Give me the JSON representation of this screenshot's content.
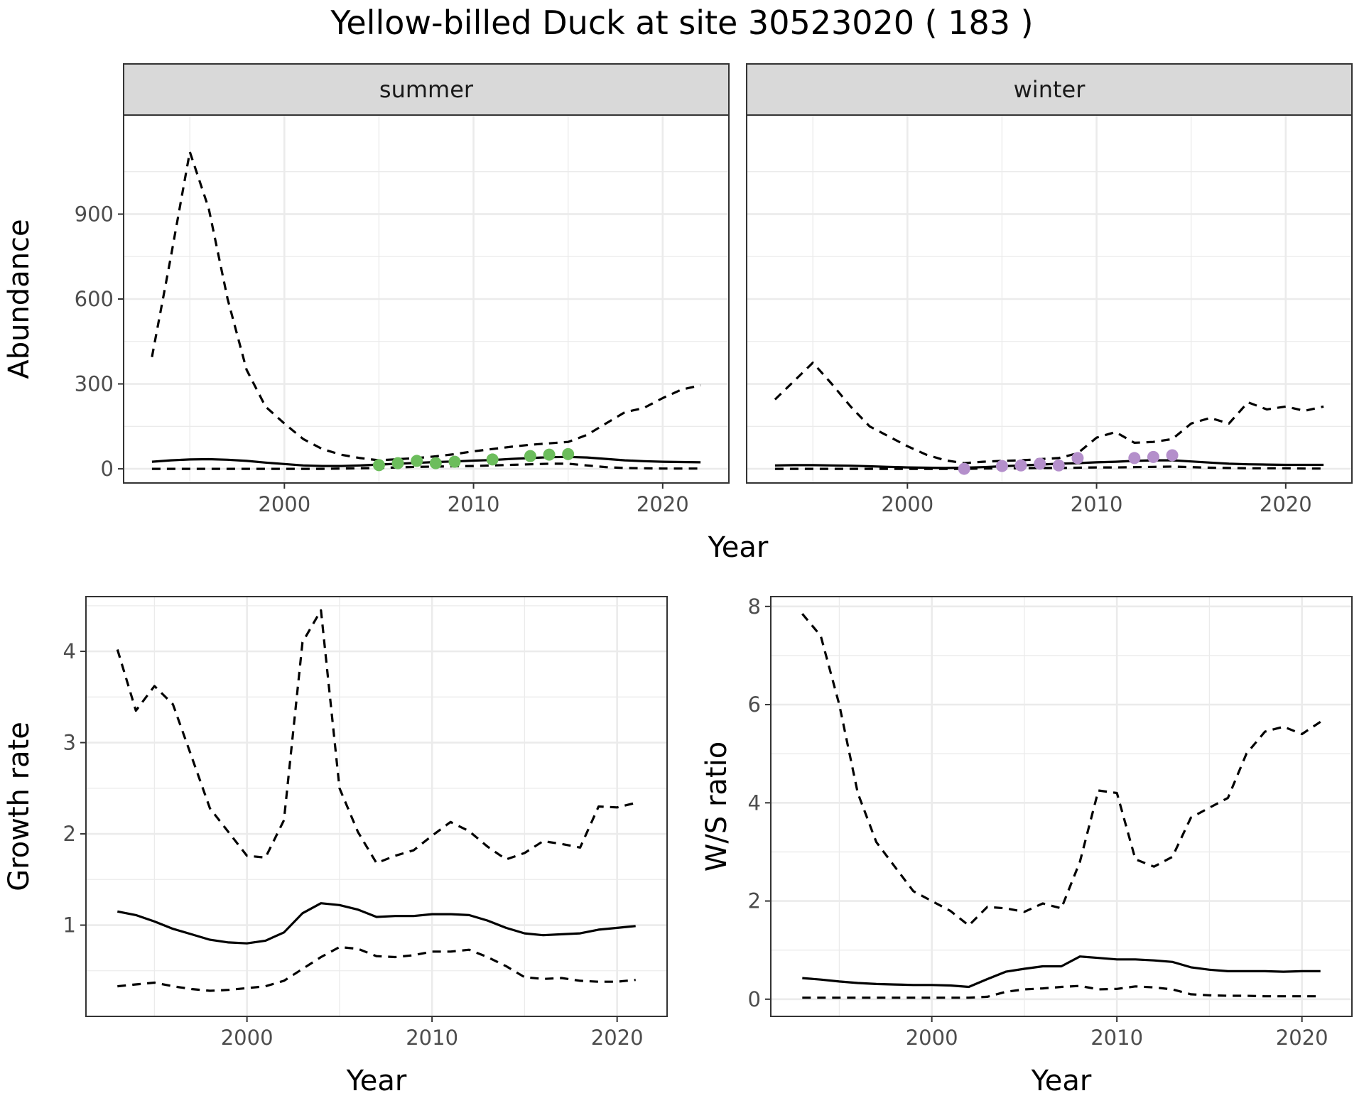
{
  "title": "Yellow-billed Duck at site 30523020 ( 183 )",
  "colors": {
    "summer_points": "#6cbd5c",
    "winter_points": "#b48fcb",
    "lines": "#000000",
    "strip_fill": "#d9d9d9",
    "grid": "#ebebeb"
  },
  "chart_data": [
    {
      "type": "line",
      "panel": "summer",
      "strip": "summer",
      "xlabel": "Year",
      "ylabel": "Abundance",
      "xlim": [
        1991.5,
        2023.5
      ],
      "ylim": [
        -50,
        1250
      ],
      "xticks": [
        2000,
        2010,
        2020
      ],
      "yticks": [
        0,
        300,
        600,
        900
      ],
      "grid": true,
      "series": [
        {
          "style": "solid",
          "x": [
            1993,
            1994,
            1995,
            1996,
            1997,
            1998,
            1999,
            2000,
            2001,
            2002,
            2003,
            2004,
            2005,
            2006,
            2007,
            2008,
            2009,
            2010,
            2011,
            2012,
            2013,
            2014,
            2015,
            2016,
            2017,
            2018,
            2019,
            2020,
            2021,
            2022
          ],
          "y": [
            25,
            30,
            33,
            34,
            32,
            28,
            22,
            17,
            12,
            10,
            10,
            12,
            15,
            18,
            21,
            24,
            26,
            29,
            31,
            35,
            38,
            41,
            42,
            40,
            35,
            30,
            27,
            25,
            24,
            23
          ]
        },
        {
          "style": "dashed",
          "x": [
            1993,
            1994,
            1995,
            1996,
            1997,
            1998,
            1999,
            2000,
            2001,
            2002,
            2003,
            2004,
            2005,
            2006,
            2007,
            2008,
            2009,
            2010,
            2011,
            2012,
            2013,
            2014,
            2015,
            2016,
            2017,
            2018,
            2019,
            2020,
            2021,
            2022
          ],
          "y": [
            395,
            750,
            1120,
            920,
            600,
            350,
            220,
            160,
            105,
            70,
            50,
            38,
            30,
            34,
            38,
            44,
            52,
            62,
            70,
            78,
            85,
            90,
            95,
            120,
            160,
            200,
            215,
            250,
            280,
            295
          ]
        },
        {
          "style": "dashed",
          "x": [
            1993,
            1994,
            1995,
            1996,
            1997,
            1998,
            1999,
            2000,
            2001,
            2002,
            2003,
            2004,
            2005,
            2006,
            2007,
            2008,
            2009,
            2010,
            2011,
            2012,
            2013,
            2014,
            2015,
            2016,
            2017,
            2018,
            2019,
            2020,
            2021,
            2022
          ],
          "y": [
            0,
            0,
            0,
            0,
            0,
            0,
            0,
            0,
            0,
            0,
            1,
            2,
            3,
            5,
            7,
            8,
            9,
            10,
            12,
            14,
            16,
            18,
            18,
            12,
            6,
            3,
            2,
            1,
            1,
            1
          ]
        }
      ],
      "points": {
        "x": [
          2005,
          2006,
          2007,
          2008,
          2009,
          2011,
          2013,
          2014,
          2015
        ],
        "y": [
          13,
          20,
          28,
          20,
          25,
          33,
          45,
          50,
          52
        ]
      }
    },
    {
      "type": "line",
      "panel": "winter",
      "strip": "winter",
      "xlabel": "Year",
      "xlim": [
        1991.5,
        2023.5
      ],
      "ylim": [
        -50,
        1250
      ],
      "xticks": [
        2000,
        2010,
        2020
      ],
      "yticks": [
        0,
        300,
        600,
        900
      ],
      "grid": true,
      "series": [
        {
          "style": "solid",
          "x": [
            1993,
            1994,
            1995,
            1996,
            1997,
            1998,
            1999,
            2000,
            2001,
            2002,
            2003,
            2004,
            2005,
            2006,
            2007,
            2008,
            2009,
            2010,
            2011,
            2012,
            2013,
            2014,
            2015,
            2016,
            2017,
            2018,
            2019,
            2020,
            2021,
            2022
          ],
          "y": [
            12,
            13,
            13,
            12,
            11,
            9,
            7,
            5,
            4,
            3,
            4,
            6,
            9,
            12,
            15,
            18,
            20,
            23,
            25,
            28,
            30,
            30,
            26,
            22,
            18,
            16,
            15,
            14,
            14,
            14
          ]
        },
        {
          "style": "dashed",
          "x": [
            1993,
            1994,
            1995,
            1996,
            1997,
            1998,
            1999,
            2000,
            2001,
            2002,
            2003,
            2004,
            2005,
            2006,
            2007,
            2008,
            2009,
            2010,
            2011,
            2012,
            2013,
            2014,
            2015,
            2016,
            2017,
            2018,
            2019,
            2020,
            2021,
            2022
          ],
          "y": [
            245,
            310,
            375,
            300,
            220,
            150,
            115,
            80,
            50,
            30,
            20,
            25,
            28,
            30,
            34,
            38,
            55,
            110,
            130,
            92,
            95,
            105,
            160,
            180,
            160,
            235,
            210,
            220,
            205,
            220
          ]
        },
        {
          "style": "dashed",
          "x": [
            1993,
            1994,
            1995,
            1996,
            1997,
            1998,
            1999,
            2000,
            2001,
            2002,
            2003,
            2004,
            2005,
            2006,
            2007,
            2008,
            2009,
            2010,
            2011,
            2012,
            2013,
            2014,
            2015,
            2016,
            2017,
            2018,
            2019,
            2020,
            2021,
            2022
          ],
          "y": [
            0,
            0,
            0,
            0,
            0,
            0,
            0,
            0,
            0,
            0,
            0,
            1,
            2,
            2,
            3,
            3,
            4,
            5,
            5,
            6,
            7,
            8,
            6,
            4,
            3,
            2,
            2,
            2,
            1,
            1
          ]
        }
      ],
      "points": {
        "x": [
          2003,
          2005,
          2006,
          2007,
          2008,
          2009,
          2012,
          2013,
          2014
        ],
        "y": [
          0,
          10,
          12,
          18,
          12,
          38,
          38,
          42,
          48
        ]
      }
    },
    {
      "type": "line",
      "panel": "growth",
      "xlabel": "Year",
      "ylabel": "Growth rate",
      "xlim": [
        1991.3,
        2022.7
      ],
      "ylim": [
        0.0,
        4.6
      ],
      "xticks": [
        2000,
        2010,
        2020
      ],
      "yticks": [
        1,
        2,
        3,
        4
      ],
      "grid": true,
      "series": [
        {
          "style": "solid",
          "x": [
            1993,
            1994,
            1995,
            1996,
            1997,
            1998,
            1999,
            2000,
            2001,
            2002,
            2003,
            2004,
            2005,
            2006,
            2007,
            2008,
            2009,
            2010,
            2011,
            2012,
            2013,
            2014,
            2015,
            2016,
            2017,
            2018,
            2019,
            2020,
            2021
          ],
          "y": [
            1.15,
            1.11,
            1.04,
            0.96,
            0.9,
            0.84,
            0.81,
            0.8,
            0.83,
            0.92,
            1.13,
            1.24,
            1.22,
            1.17,
            1.09,
            1.1,
            1.1,
            1.12,
            1.12,
            1.11,
            1.05,
            0.97,
            0.91,
            0.89,
            0.9,
            0.91,
            0.95,
            0.97,
            0.99
          ]
        },
        {
          "style": "dashed",
          "x": [
            1993,
            1994,
            1995,
            1996,
            1997,
            1998,
            1999,
            2000,
            2001,
            2002,
            2003,
            2004,
            2005,
            2006,
            2007,
            2008,
            2009,
            2010,
            2011,
            2012,
            2013,
            2014,
            2015,
            2016,
            2017,
            2018,
            2019,
            2020,
            2021
          ],
          "y": [
            4.02,
            3.35,
            3.62,
            3.42,
            2.85,
            2.28,
            2.02,
            1.76,
            1.74,
            2.15,
            4.1,
            4.45,
            2.5,
            2.02,
            1.68,
            1.76,
            1.82,
            1.98,
            2.13,
            2.03,
            1.86,
            1.72,
            1.79,
            1.92,
            1.89,
            1.85,
            2.3,
            2.29,
            2.34
          ]
        },
        {
          "style": "dashed",
          "x": [
            1993,
            1994,
            1995,
            1996,
            1997,
            1998,
            1999,
            2000,
            2001,
            2002,
            2003,
            2004,
            2005,
            2006,
            2007,
            2008,
            2009,
            2010,
            2011,
            2012,
            2013,
            2014,
            2015,
            2016,
            2017,
            2018,
            2019,
            2020,
            2021
          ],
          "y": [
            0.33,
            0.35,
            0.37,
            0.33,
            0.3,
            0.28,
            0.29,
            0.31,
            0.33,
            0.39,
            0.52,
            0.65,
            0.76,
            0.74,
            0.66,
            0.65,
            0.67,
            0.71,
            0.71,
            0.73,
            0.65,
            0.55,
            0.43,
            0.41,
            0.42,
            0.39,
            0.38,
            0.38,
            0.4
          ]
        }
      ]
    },
    {
      "type": "line",
      "panel": "ratio",
      "xlabel": "Year",
      "ylabel": "W/S ratio",
      "xlim": [
        1991.3,
        2022.7
      ],
      "ylim": [
        -0.35,
        8.2
      ],
      "xticks": [
        2000,
        2010,
        2020
      ],
      "yticks": [
        0,
        2,
        4,
        6,
        8
      ],
      "grid": true,
      "series": [
        {
          "style": "solid",
          "x": [
            1993,
            1994,
            1995,
            1996,
            1997,
            1998,
            1999,
            2000,
            2001,
            2002,
            2003,
            2004,
            2005,
            2006,
            2007,
            2008,
            2009,
            2010,
            2011,
            2012,
            2013,
            2014,
            2015,
            2016,
            2017,
            2018,
            2019,
            2020,
            2021
          ],
          "y": [
            0.43,
            0.4,
            0.36,
            0.33,
            0.31,
            0.3,
            0.29,
            0.29,
            0.28,
            0.25,
            0.41,
            0.56,
            0.62,
            0.67,
            0.67,
            0.87,
            0.84,
            0.81,
            0.81,
            0.79,
            0.76,
            0.65,
            0.6,
            0.57,
            0.57,
            0.57,
            0.56,
            0.57,
            0.57
          ]
        },
        {
          "style": "dashed",
          "x": [
            1993,
            1994,
            1995,
            1996,
            1997,
            1998,
            1999,
            2000,
            2001,
            2002,
            2003,
            2004,
            2005,
            2006,
            2007,
            2008,
            2009,
            2010,
            2011,
            2012,
            2013,
            2014,
            2015,
            2016,
            2017,
            2018,
            2019,
            2020,
            2021
          ],
          "y": [
            7.85,
            7.4,
            6.0,
            4.2,
            3.2,
            2.7,
            2.2,
            2.0,
            1.8,
            1.5,
            1.88,
            1.85,
            1.78,
            1.95,
            1.85,
            2.8,
            4.25,
            4.2,
            2.85,
            2.7,
            2.9,
            3.7,
            3.9,
            4.1,
            5.0,
            5.45,
            5.55,
            5.4,
            5.65
          ]
        },
        {
          "style": "dashed",
          "x": [
            1993,
            1994,
            1995,
            1996,
            1997,
            1998,
            1999,
            2000,
            2001,
            2002,
            2003,
            2004,
            2005,
            2006,
            2007,
            2008,
            2009,
            2010,
            2011,
            2012,
            2013,
            2014,
            2015,
            2016,
            2017,
            2018,
            2019,
            2020,
            2021
          ],
          "y": [
            0.03,
            0.03,
            0.03,
            0.03,
            0.03,
            0.03,
            0.03,
            0.03,
            0.03,
            0.03,
            0.05,
            0.15,
            0.2,
            0.22,
            0.25,
            0.27,
            0.2,
            0.21,
            0.26,
            0.24,
            0.2,
            0.1,
            0.08,
            0.07,
            0.07,
            0.06,
            0.06,
            0.06,
            0.06
          ]
        }
      ]
    }
  ]
}
